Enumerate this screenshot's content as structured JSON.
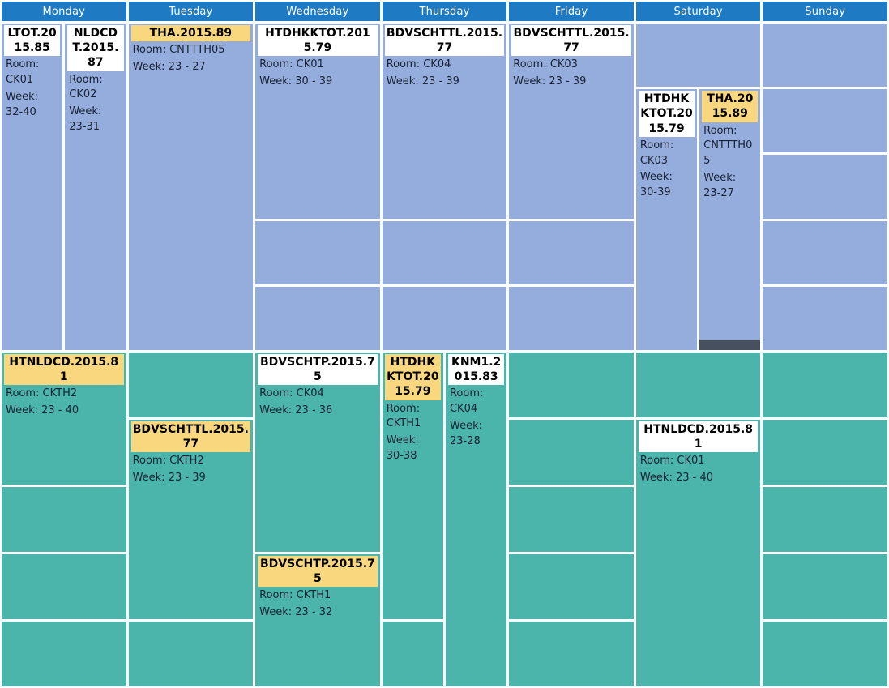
{
  "app": {
    "view": "weekly-timetable"
  },
  "colors": {
    "header_blue": "#1E7AC3",
    "morning_background": "#94ADDC",
    "afternoon_background": "#4BB4AB",
    "title_white": "#FFFFFF",
    "title_yellow": "#F8D77E",
    "dark_indicator": "#47505E",
    "header_text": "#FFFFFF",
    "body_text": "#1A2233"
  },
  "days": [
    {
      "name": "Monday",
      "morning_events": [
        {
          "title": "LTOT.2015.85",
          "room": "Room: CK01",
          "week": "Week: 32-40",
          "title_bg": "white"
        },
        {
          "title": "NLDCDT.2015.87",
          "room": "Room: CK02",
          "week": "Week: 23-31",
          "title_bg": "white"
        }
      ],
      "afternoon_events": [
        {
          "title": "HTNLDCD.2015.81",
          "room": "Room: CKTH2",
          "week": "Week: 23 - 40",
          "title_bg": "yellow"
        }
      ]
    },
    {
      "name": "Tuesday",
      "morning_events": [
        {
          "title": "THA.2015.89",
          "room": "Room: CNTTTH05",
          "week": "Week: 23 - 27",
          "title_bg": "yellow"
        }
      ],
      "afternoon_events": [
        {
          "title": "BDVSCHTTL.2015.77",
          "room": "Room: CKTH2",
          "week": "Week: 23 - 39",
          "title_bg": "yellow"
        }
      ]
    },
    {
      "name": "Wednesday",
      "morning_events": [
        {
          "title": "HTDHKKTOT.2015.79",
          "room": "Room: CK01",
          "week": "Week: 30 - 39",
          "title_bg": "white"
        }
      ],
      "afternoon_events": [
        {
          "title": "BDVSCHTP.2015.75",
          "room": "Room: CK04",
          "week": "Week: 23 - 36",
          "title_bg": "white"
        },
        {
          "title": "BDVSCHTP.2015.75",
          "room": "Room: CKTH1",
          "week": "Week: 23 - 32",
          "title_bg": "yellow"
        }
      ]
    },
    {
      "name": "Thursday",
      "morning_events": [
        {
          "title": "BDVSCHTTL.2015.77",
          "room": "Room: CK04",
          "week": "Week: 23 - 39",
          "title_bg": "white"
        }
      ],
      "afternoon_events": [
        {
          "title": "HTDHKKTOT.2015.79",
          "room": "Room: CKTH1",
          "week": "Week: 30-38",
          "title_bg": "yellow"
        },
        {
          "title": "KNM1.2015.83",
          "room": "Room: CK04",
          "week": "Week: 23-28",
          "title_bg": "white"
        }
      ]
    },
    {
      "name": "Friday",
      "morning_events": [
        {
          "title": "BDVSCHTTL.2015.77",
          "room": "Room: CK03",
          "week": "Week: 23 - 39",
          "title_bg": "white"
        }
      ],
      "afternoon_events": []
    },
    {
      "name": "Saturday",
      "morning_events": [
        {
          "title": "HTDHKKTOT.2015.79",
          "room": "Room: CK03",
          "week": "Week: 30-39",
          "title_bg": "white"
        },
        {
          "title": "THA.2015.89",
          "room": "Room: CNTTTH05",
          "week": "Week: 23-27",
          "title_bg": "yellow"
        }
      ],
      "afternoon_events": [
        {
          "title": "HTNLDCD.2015.81",
          "room": "Room: CK01",
          "week": "Week: 23 - 40",
          "title_bg": "white"
        }
      ]
    },
    {
      "name": "Sunday",
      "morning_events": [],
      "afternoon_events": []
    }
  ]
}
